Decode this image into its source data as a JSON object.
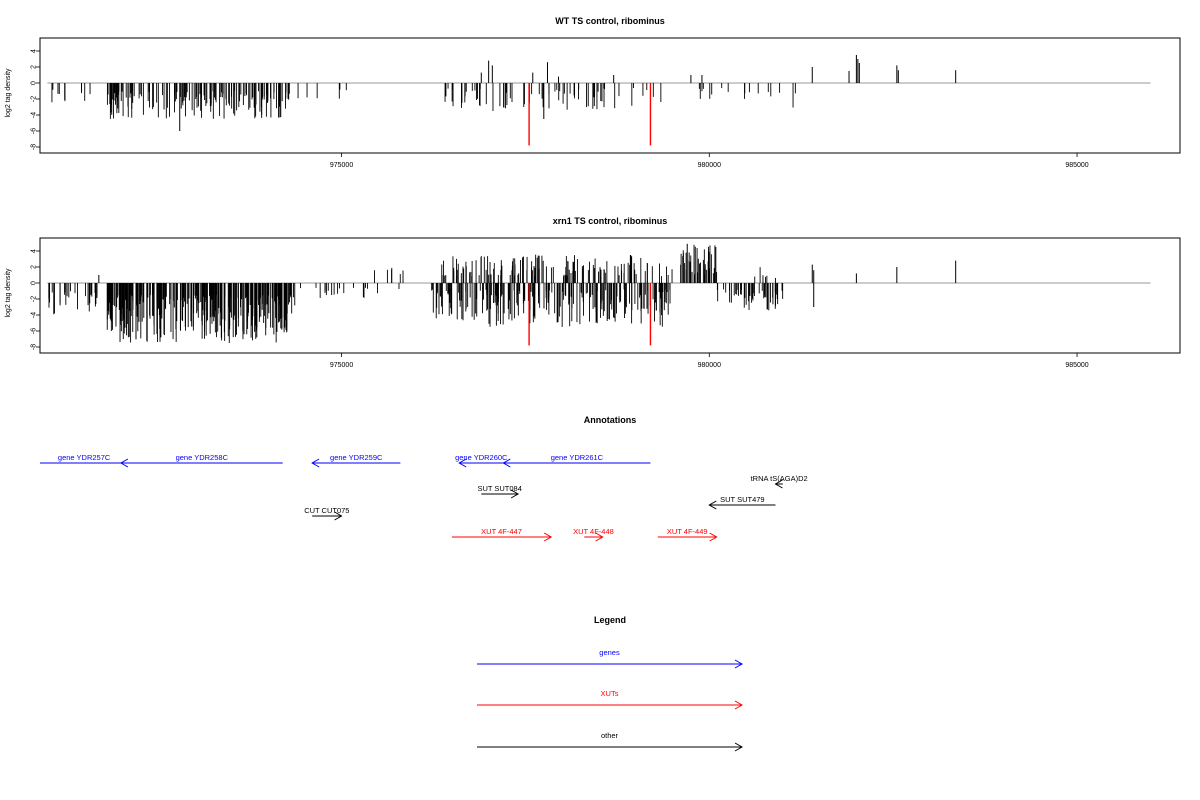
{
  "colors": {
    "gene": "#0000ff",
    "xut": "#ff0000",
    "other": "#000000",
    "baseline": "#999999",
    "bar": "#000000",
    "highlight": "#ff0000"
  },
  "chart_data": [
    {
      "type": "bar",
      "title": "WT TS control, ribominus",
      "ylabel": "log2 tag density",
      "ylim": [
        -8,
        5
      ],
      "xlim": [
        970900,
        986400
      ],
      "yticks": [
        "4",
        "2",
        "0",
        "-2",
        "-4",
        "-6",
        "-8"
      ],
      "ytick_values": [
        4,
        2,
        0,
        -2,
        -4,
        -6,
        -8
      ],
      "xticks": [
        "975000",
        "980000",
        "985000"
      ],
      "xtick_values": [
        975000,
        980000,
        985000
      ],
      "baseline_range": [
        971000,
        986000
      ],
      "seed": 11,
      "segments": [
        {
          "start": 971000,
          "end": 971600,
          "count": 14,
          "min": 0.8,
          "max": 3.0,
          "sign": -1,
          "density": 0.6
        },
        {
          "start": 971800,
          "end": 974300,
          "count": 170,
          "min": 1.0,
          "max": 4.5,
          "sign": -1,
          "density": 0.9
        },
        {
          "start": 974300,
          "end": 975300,
          "count": 12,
          "min": 0.6,
          "max": 2.0,
          "sign": -1,
          "density": 0.5
        },
        {
          "start": 976300,
          "end": 977400,
          "count": 45,
          "min": 0.6,
          "max": 3.5,
          "sign": -1,
          "density": 0.7
        },
        {
          "start": 977400,
          "end": 979400,
          "count": 60,
          "min": 0.6,
          "max": 3.5,
          "sign": -1,
          "density": 0.8
        },
        {
          "start": 979800,
          "end": 981300,
          "count": 28,
          "min": 0.6,
          "max": 3.2,
          "sign": -1,
          "density": 0.6
        }
      ],
      "bars": [
        {
          "x": 972800,
          "y": -6.0
        },
        {
          "x": 977000,
          "y": 2.8
        },
        {
          "x": 977050,
          "y": 2.2
        },
        {
          "x": 976900,
          "y": 1.3
        },
        {
          "x": 977600,
          "y": 1.3
        },
        {
          "x": 977750,
          "y": -4.5
        },
        {
          "x": 977800,
          "y": 2.6
        },
        {
          "x": 977950,
          "y": 0.8
        },
        {
          "x": 978700,
          "y": 1.0
        },
        {
          "x": 979750,
          "y": 1.0
        },
        {
          "x": 979900,
          "y": 1.0
        },
        {
          "x": 981400,
          "y": 2.0
        },
        {
          "x": 981900,
          "y": 1.5
        },
        {
          "x": 982000,
          "y": 3.5
        },
        {
          "x": 982020,
          "y": 3.0
        },
        {
          "x": 982040,
          "y": 2.5
        },
        {
          "x": 982550,
          "y": 2.2
        },
        {
          "x": 982570,
          "y": 1.6
        },
        {
          "x": 983350,
          "y": 1.6
        }
      ],
      "highlight_bars": [
        {
          "x": 977550,
          "y": -7.8
        },
        {
          "x": 979200,
          "y": -7.8
        }
      ]
    },
    {
      "type": "bar",
      "title": "xrn1 TS control, ribominus",
      "ylabel": "log2 tag density",
      "ylim": [
        -8,
        5
      ],
      "xlim": [
        970900,
        986400
      ],
      "yticks": [
        "4",
        "2",
        "0",
        "-2",
        "-4",
        "-6",
        "-8"
      ],
      "ytick_values": [
        4,
        2,
        0,
        -2,
        -4,
        -6,
        -8
      ],
      "xticks": [
        "975000",
        "980000",
        "985000"
      ],
      "xtick_values": [
        975000,
        980000,
        985000
      ],
      "baseline_range": [
        971000,
        986000
      ],
      "seed": 29,
      "segments": [
        {
          "start": 971000,
          "end": 971700,
          "count": 30,
          "min": 1.0,
          "max": 4.0,
          "sign": -1,
          "density": 1
        },
        {
          "start": 971800,
          "end": 974400,
          "count": 320,
          "min": 1.5,
          "max": 7.5,
          "sign": -1,
          "density": 1
        },
        {
          "start": 974400,
          "end": 975800,
          "count": 25,
          "min": 0.6,
          "max": 2.0,
          "sign": -1,
          "density": 0.7
        },
        {
          "start": 975400,
          "end": 975900,
          "count": 6,
          "min": 0.8,
          "max": 2.0,
          "sign": 1,
          "density": 1
        },
        {
          "start": 976200,
          "end": 979500,
          "count": 230,
          "min": 0.8,
          "max": 5.5,
          "sign": -1,
          "density": 1
        },
        {
          "start": 976300,
          "end": 979500,
          "count": 130,
          "min": 0.8,
          "max": 3.6,
          "sign": 1,
          "density": 1
        },
        {
          "start": 979600,
          "end": 980100,
          "count": 40,
          "min": 1.0,
          "max": 4.8,
          "sign": 1,
          "density": 1
        },
        {
          "start": 980100,
          "end": 981000,
          "count": 50,
          "min": 0.8,
          "max": 3.5,
          "sign": -1,
          "density": 1
        },
        {
          "start": 980500,
          "end": 981000,
          "count": 6,
          "min": 0.6,
          "max": 2.0,
          "sign": 1,
          "density": 1
        }
      ],
      "bars": [
        {
          "x": 971700,
          "y": 1.0
        },
        {
          "x": 981400,
          "y": 2.3
        },
        {
          "x": 981420,
          "y": 1.6
        },
        {
          "x": 981420,
          "y": -3.0
        },
        {
          "x": 982000,
          "y": 1.2
        },
        {
          "x": 982550,
          "y": 2.0
        },
        {
          "x": 983350,
          "y": 2.8
        },
        {
          "x": 979700,
          "y": 4.9
        }
      ],
      "highlight_bars": [
        {
          "x": 977550,
          "y": -7.8
        },
        {
          "x": 979200,
          "y": -7.8
        }
      ]
    }
  ],
  "annotations": {
    "title": "Annotations",
    "xlim": [
      970900,
      986400
    ],
    "items": [
      {
        "label": "gene YDR257C",
        "kind": "gene",
        "start": 970900,
        "end": 972100,
        "dir": "none",
        "row": 0
      },
      {
        "label": "gene YDR258C",
        "kind": "gene",
        "start": 972000,
        "end": 974200,
        "dir": "left",
        "row": 0
      },
      {
        "label": "gene YDR259C",
        "kind": "gene",
        "start": 974600,
        "end": 975800,
        "dir": "left",
        "row": 0
      },
      {
        "label": "gene YDR260C",
        "kind": "gene",
        "start": 976600,
        "end": 977200,
        "dir": "left",
        "row": 0
      },
      {
        "label": "gene YDR261C",
        "kind": "gene",
        "start": 977200,
        "end": 979200,
        "dir": "left",
        "row": 0
      },
      {
        "label": "tRNA tS(AGA)D2",
        "kind": "other",
        "start": 980900,
        "end": 981000,
        "dir": "left",
        "row": 1
      },
      {
        "label": "SUT SUT084",
        "kind": "other",
        "start": 976900,
        "end": 977400,
        "dir": "right",
        "row": 2
      },
      {
        "label": "SUT SUT479",
        "kind": "other",
        "start": 980000,
        "end": 980900,
        "dir": "left",
        "row": 3
      },
      {
        "label": "CUT CUT075",
        "kind": "other",
        "start": 974600,
        "end": 975000,
        "dir": "right",
        "row": 4
      },
      {
        "label": "XUT 4F-447",
        "kind": "xut",
        "start": 976500,
        "end": 977850,
        "dir": "right",
        "row": 5
      },
      {
        "label": "XUT 4F-448",
        "kind": "xut",
        "start": 978300,
        "end": 978550,
        "dir": "right",
        "row": 5
      },
      {
        "label": "XUT 4F-449",
        "kind": "xut",
        "start": 979300,
        "end": 980100,
        "dir": "right",
        "row": 5
      }
    ]
  },
  "legend": {
    "title": "Legend",
    "items": [
      {
        "label": "genes",
        "kind": "gene"
      },
      {
        "label": "XUTs",
        "kind": "xut"
      },
      {
        "label": "other",
        "kind": "other"
      }
    ]
  }
}
